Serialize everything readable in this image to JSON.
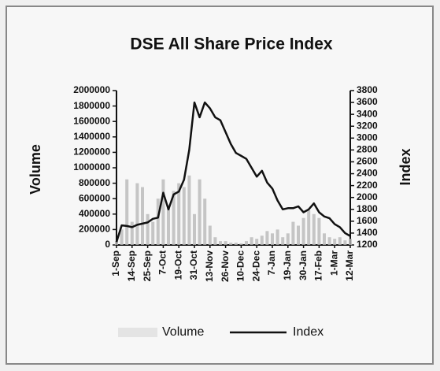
{
  "chart_data": {
    "type": "combo",
    "title": "DSE All Share Price Index",
    "y_label": "Volume",
    "y2_label": "Index",
    "categories": [
      "1-Sep",
      null,
      null,
      "14-Sep",
      null,
      null,
      "25-Sep",
      null,
      null,
      "7-Oct",
      null,
      null,
      "19-Oct",
      null,
      null,
      "31-Oct",
      null,
      null,
      "13-Nov",
      null,
      null,
      "26-Nov",
      null,
      null,
      "10-Dec",
      null,
      null,
      "24-Dec",
      null,
      null,
      "7-Jan",
      null,
      null,
      "19-Jan",
      null,
      null,
      "30-Jan",
      null,
      null,
      "17-Feb",
      null,
      null,
      "1-Mar",
      null,
      null,
      "12-Mar"
    ],
    "series": [
      {
        "name": "Volume",
        "type": "bar",
        "axis": "y",
        "color": "#b8b8b8",
        "values": [
          50000,
          200000,
          850000,
          300000,
          800000,
          750000,
          400000,
          300000,
          600000,
          850000,
          500000,
          700000,
          800000,
          750000,
          900000,
          400000,
          850000,
          600000,
          250000,
          100000,
          50000,
          50000,
          30000,
          30000,
          20000,
          50000,
          100000,
          80000,
          120000,
          180000,
          150000,
          200000,
          100000,
          150000,
          300000,
          250000,
          350000,
          450000,
          400000,
          350000,
          150000,
          100000,
          80000,
          100000,
          60000,
          80000
        ]
      },
      {
        "name": "Index",
        "type": "line",
        "axis": "y2",
        "color": "#111111",
        "values": [
          1250,
          1530,
          1520,
          1500,
          1540,
          1560,
          1580,
          1640,
          1660,
          2080,
          1800,
          2050,
          2100,
          2300,
          2800,
          3600,
          3350,
          3600,
          3500,
          3350,
          3300,
          3100,
          2900,
          2750,
          2700,
          2650,
          2500,
          2350,
          2450,
          2250,
          2150,
          1950,
          1800,
          1820,
          1820,
          1850,
          1750,
          1800,
          1900,
          1750,
          1680,
          1650,
          1550,
          1500,
          1400,
          1350
        ]
      }
    ],
    "ylim": [
      0,
      2000000
    ],
    "yticks": [
      0,
      200000,
      400000,
      600000,
      800000,
      1000000,
      1200000,
      1400000,
      1600000,
      1800000,
      2000000
    ],
    "y2lim": [
      1200,
      3800
    ],
    "y2ticks": [
      1200,
      1400,
      1600,
      1800,
      2000,
      2200,
      2400,
      2600,
      2800,
      3000,
      3200,
      3400,
      3600,
      3800
    ]
  }
}
